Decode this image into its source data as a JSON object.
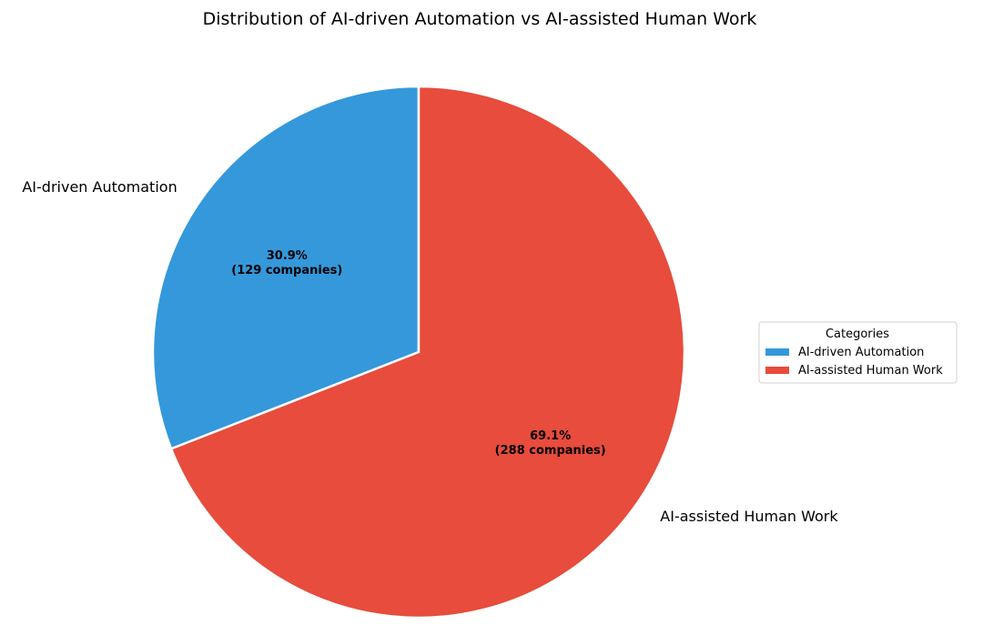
{
  "chart_data": {
    "type": "pie",
    "title": "Distribution of AI-driven Automation vs AI-assisted Human Work",
    "start_angle_deg": 90,
    "direction": "counterclockwise",
    "slices": [
      {
        "label": "AI-driven Automation",
        "value": 129,
        "percent_label": "30.9%",
        "count_label": "(129 companies)",
        "color": "#3498db"
      },
      {
        "label": "AI-assisted Human Work",
        "value": 288,
        "percent_label": "69.1%",
        "count_label": "(288 companies)",
        "color": "#e74c3c"
      }
    ],
    "legend": {
      "title": "Categories",
      "placement": "right",
      "entries": [
        "AI-driven Automation",
        "AI-assisted Human Work"
      ]
    }
  }
}
